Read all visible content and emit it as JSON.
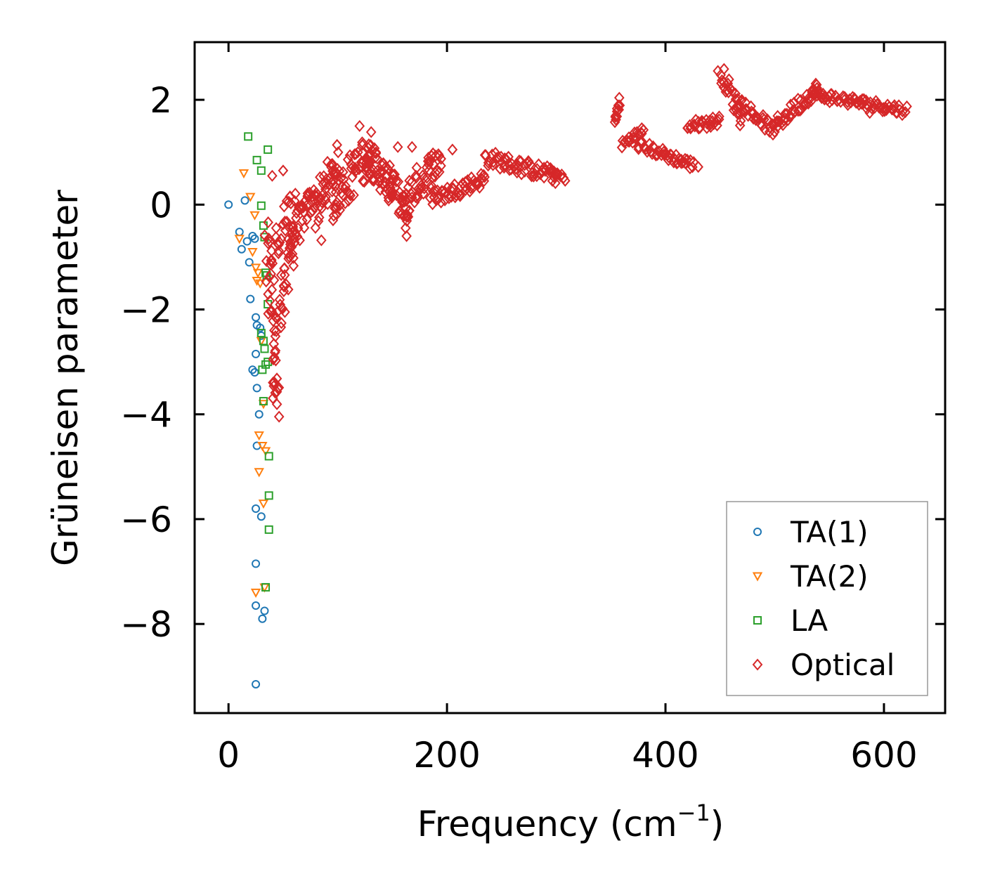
{
  "chart_data": {
    "type": "scatter",
    "xlabel": "Frequency (cm",
    "xlabel_sup": "−1",
    "xlabel_end": ")",
    "ylabel": "Grüneisen parameter",
    "xlim": [
      -31,
      656
    ],
    "ylim": [
      -9.7,
      3.1
    ],
    "xticks": [
      0,
      200,
      400,
      600
    ],
    "xtick_labels": [
      "0",
      "200",
      "400",
      "600"
    ],
    "yticks": [
      2,
      0,
      -2,
      -4,
      -6,
      -8
    ],
    "ytick_labels": [
      "2",
      "0",
      "−2",
      "−4",
      "−6",
      "−8"
    ],
    "legend_position": "lower-right",
    "series": [
      {
        "name": "TA(1)",
        "marker": "circle",
        "color": "#1f77b4",
        "points": [
          [
            0,
            0
          ],
          [
            10,
            -0.52
          ],
          [
            12,
            -0.85
          ],
          [
            15,
            0.08
          ],
          [
            17,
            -0.7
          ],
          [
            19,
            -1.1
          ],
          [
            20,
            -1.8
          ],
          [
            22,
            -0.6
          ],
          [
            22,
            -3.15
          ],
          [
            24,
            -0.65
          ],
          [
            24,
            -3.2
          ],
          [
            25,
            -2.15
          ],
          [
            25,
            -2.85
          ],
          [
            25,
            -5.8
          ],
          [
            25,
            -6.85
          ],
          [
            25,
            -7.65
          ],
          [
            25,
            -9.15
          ],
          [
            26,
            -2.3
          ],
          [
            26,
            -3.5
          ],
          [
            26,
            -4.6
          ],
          [
            28,
            -4.0
          ],
          [
            30,
            -2.5
          ],
          [
            30,
            -5.95
          ],
          [
            31,
            -7.9
          ],
          [
            33,
            -7.75
          ],
          [
            29,
            -2.35
          ]
        ]
      },
      {
        "name": "TA(2)",
        "marker": "triangle-down",
        "color": "#ff7f0e",
        "points": [
          [
            10,
            -0.65
          ],
          [
            14,
            0.6
          ],
          [
            20,
            0.15
          ],
          [
            22,
            -0.9
          ],
          [
            24,
            -0.2
          ],
          [
            25,
            -1.2
          ],
          [
            26,
            -1.45
          ],
          [
            27,
            -1.3
          ],
          [
            28,
            -4.4
          ],
          [
            28,
            -5.1
          ],
          [
            30,
            -2.6
          ],
          [
            31,
            -4.6
          ],
          [
            32,
            -3.8
          ],
          [
            32,
            -5.7
          ],
          [
            33,
            -7.3
          ],
          [
            34,
            -4.7
          ],
          [
            25,
            -7.4
          ],
          [
            29,
            -1.5
          ]
        ]
      },
      {
        "name": "LA",
        "marker": "square",
        "color": "#2ca02c",
        "points": [
          [
            18,
            1.3
          ],
          [
            26,
            0.85
          ],
          [
            30,
            0.65
          ],
          [
            30,
            -0.02
          ],
          [
            32,
            -0.4
          ],
          [
            33,
            -0.62
          ],
          [
            34,
            -1.3
          ],
          [
            35,
            -1.35
          ],
          [
            36,
            -1.9
          ],
          [
            30,
            -2.45
          ],
          [
            32,
            -2.6
          ],
          [
            33,
            -2.75
          ],
          [
            36,
            -3.0
          ],
          [
            31,
            -3.15
          ],
          [
            34,
            -3.05
          ],
          [
            36,
            1.05
          ],
          [
            37,
            -4.8
          ],
          [
            37,
            -5.55
          ],
          [
            37,
            -6.2
          ],
          [
            34,
            -7.3
          ],
          [
            32,
            -3.75
          ]
        ]
      },
      {
        "name": "Optical",
        "marker": "diamond",
        "color": "#d62728",
        "segments": [
          {
            "x": [
              35,
              45
            ],
            "y": [
              -0.6,
              -3.9
            ],
            "n": 40,
            "jitter": 0.35,
            "spread": 8
          },
          {
            "x": [
              45,
              60
            ],
            "y": [
              -2.5,
              -0.6
            ],
            "n": 30,
            "jitter": 0.5,
            "spread": 6
          },
          {
            "x": [
              40,
              60
            ],
            "y": [
              -1.0,
              0.1
            ],
            "n": 25,
            "jitter": 0.3,
            "spread": 6
          },
          {
            "x": [
              55,
              80
            ],
            "y": [
              -0.7,
              0.2
            ],
            "n": 40,
            "jitter": 0.3,
            "spread": 4
          },
          {
            "x": [
              80,
              100
            ],
            "y": [
              -0.1,
              0.8
            ],
            "n": 40,
            "jitter": 0.4,
            "spread": 3
          },
          {
            "x": [
              95,
              130
            ],
            "y": [
              0.1,
              1.0
            ],
            "n": 60,
            "jitter": 0.45,
            "spread": 3
          },
          {
            "x": [
              125,
              150
            ],
            "y": [
              1.0,
              0.3
            ],
            "n": 50,
            "jitter": 0.35,
            "spread": 3
          },
          {
            "x": [
              148,
              165
            ],
            "y": [
              0.5,
              -0.4
            ],
            "n": 30,
            "jitter": 0.3,
            "spread": 2
          },
          {
            "x": [
              160,
              195
            ],
            "y": [
              0.1,
              0.9
            ],
            "n": 50,
            "jitter": 0.35,
            "spread": 3
          },
          {
            "x": [
              185,
              235
            ],
            "y": [
              0.1,
              0.5
            ],
            "n": 50,
            "jitter": 0.15,
            "spread": 2
          },
          {
            "x": [
              235,
              300
            ],
            "y": [
              0.9,
              0.55
            ],
            "n": 60,
            "jitter": 0.15,
            "spread": 2
          },
          {
            "x": [
              295,
              308
            ],
            "y": [
              0.65,
              0.5
            ],
            "n": 10,
            "jitter": 0.05,
            "spread": 1
          },
          {
            "x": [
              354,
              358
            ],
            "y": [
              1.6,
              1.95
            ],
            "n": 14,
            "jitter": 0.1,
            "spread": 1
          },
          {
            "x": [
              360,
              380
            ],
            "y": [
              1.15,
              1.4
            ],
            "n": 20,
            "jitter": 0.1,
            "spread": 2
          },
          {
            "x": [
              375,
              425
            ],
            "y": [
              1.15,
              0.75
            ],
            "n": 45,
            "jitter": 0.1,
            "spread": 2
          },
          {
            "x": [
              420,
              450
            ],
            "y": [
              1.5,
              1.6
            ],
            "n": 30,
            "jitter": 0.1,
            "spread": 2
          },
          {
            "x": [
              450,
              470
            ],
            "y": [
              2.55,
              1.65
            ],
            "n": 25,
            "jitter": 0.2,
            "spread": 2
          },
          {
            "x": [
              465,
              500
            ],
            "y": [
              2.0,
              1.4
            ],
            "n": 35,
            "jitter": 0.12,
            "spread": 2
          },
          {
            "x": [
              500,
              540
            ],
            "y": [
              1.5,
              2.25
            ],
            "n": 40,
            "jitter": 0.15,
            "spread": 2
          },
          {
            "x": [
              535,
              620
            ],
            "y": [
              2.1,
              1.8
            ],
            "n": 70,
            "jitter": 0.1,
            "spread": 2
          }
        ],
        "points": [
          [
            50,
            0.65
          ],
          [
            40,
            0.55
          ],
          [
            85,
            -0.68
          ],
          [
            205,
            1.05
          ],
          [
            120,
            1.5
          ],
          [
            168,
            1.1
          ],
          [
            155,
            1.1
          ],
          [
            163,
            -0.6
          ],
          [
            587,
            1.75
          ],
          [
            430,
            0.72
          ],
          [
            448,
            2.55
          ]
        ]
      }
    ]
  }
}
